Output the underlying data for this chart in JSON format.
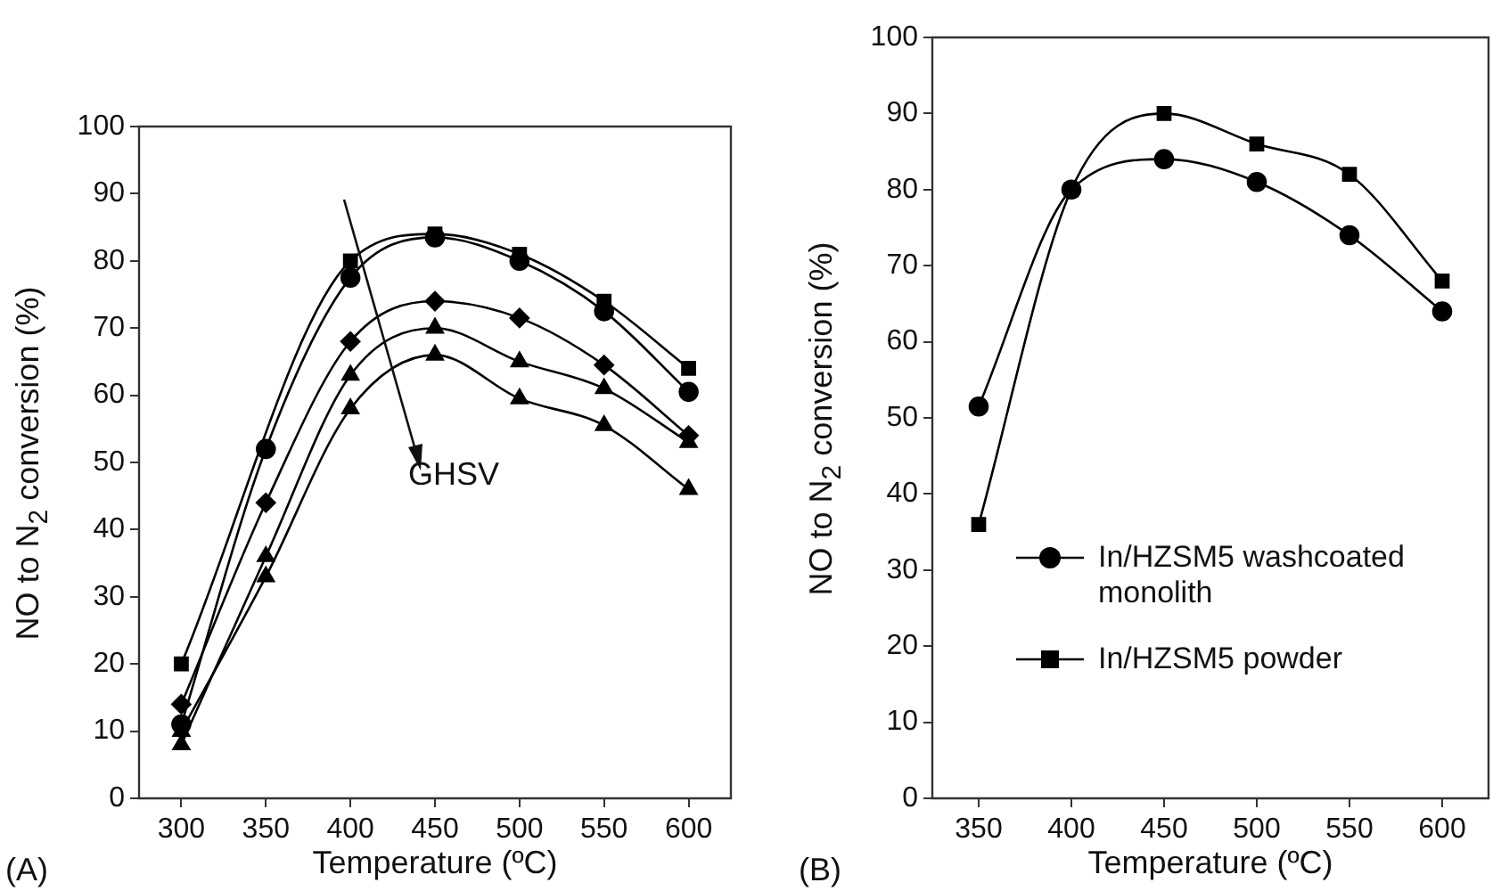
{
  "chart_data": [
    {
      "type": "line",
      "xlabel": "Temperature (ºC)",
      "ylabel": "NO to N$_{2}$ conversion (%)",
      "x": [
        300,
        350,
        400,
        450,
        500,
        550,
        600
      ],
      "xlim": [
        275,
        625
      ],
      "xticks": [
        300,
        350,
        400,
        450,
        500,
        550,
        600
      ],
      "ylim": [
        0,
        100
      ],
      "yticks": [
        0,
        10,
        20,
        30,
        40,
        50,
        60,
        70,
        80,
        90,
        100
      ],
      "grid": false,
      "legend": false,
      "line_style": "solid",
      "series": [
        {
          "color": "#000000",
          "marker": "square",
          "values": [
            20,
            null,
            80,
            84,
            81,
            74,
            64
          ]
        },
        {
          "color": "#000000",
          "marker": "circle",
          "values": [
            11,
            52,
            77.5,
            83.5,
            80,
            72.5,
            60.5
          ]
        },
        {
          "color": "#000000",
          "marker": "diamond",
          "values": [
            14,
            44,
            68,
            74,
            71.5,
            64.5,
            54
          ]
        },
        {
          "color": "#000000",
          "marker": "triangle",
          "values": [
            8,
            36,
            63,
            70,
            65,
            61,
            53
          ]
        },
        {
          "color": "#000000",
          "marker": "triangle",
          "values": [
            10,
            33,
            58,
            66,
            59.5,
            55.5,
            46
          ]
        }
      ],
      "annotations": [
        "GHSV",
        "(A)"
      ]
    },
    {
      "type": "line",
      "xlabel": "Temperature (ºC)",
      "ylabel": "NO to N$_{2}$ conversion (%)",
      "x": [
        350,
        400,
        450,
        500,
        550,
        600
      ],
      "xlim": [
        325,
        625
      ],
      "xticks": [
        350,
        400,
        450,
        500,
        550,
        600
      ],
      "ylim": [
        0,
        100
      ],
      "yticks": [
        0,
        10,
        20,
        30,
        40,
        50,
        60,
        70,
        80,
        90,
        100
      ],
      "grid": false,
      "legend": "left",
      "line_style": "solid",
      "series": [
        {
          "name": "In/HZSM5 washcoated monolith",
          "color": "#000000",
          "marker": "circle",
          "values": [
            51.5,
            80,
            84,
            81,
            74,
            64
          ]
        },
        {
          "name": "In/HZSM5 powder",
          "color": "#000000",
          "marker": "square",
          "values": [
            36,
            80,
            90,
            86,
            82,
            68
          ]
        }
      ],
      "annotations": [
        "(B)"
      ]
    }
  ]
}
